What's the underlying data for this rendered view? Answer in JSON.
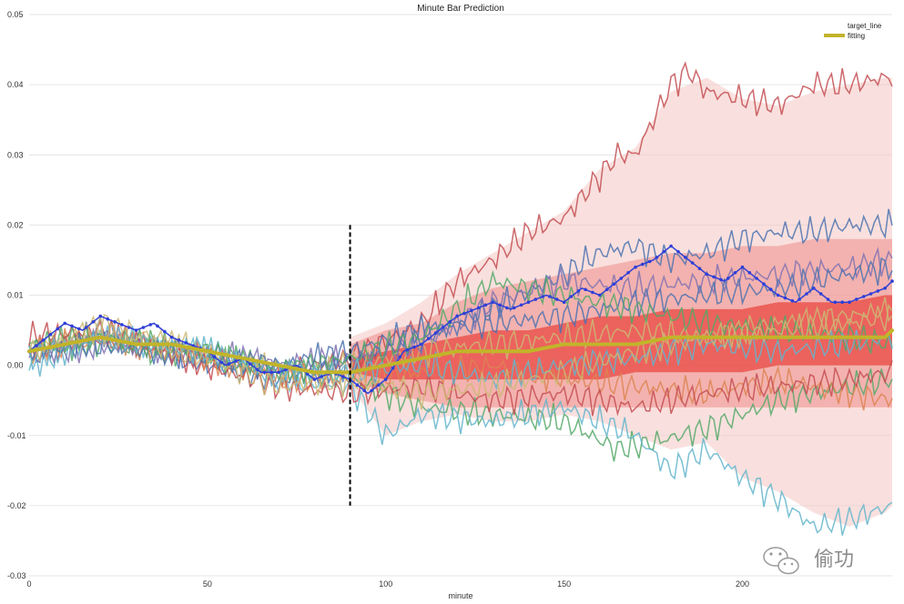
{
  "chart_data": {
    "type": "line",
    "title": "Minute Bar Prediction",
    "xlabel": "minute",
    "ylabel": "",
    "xlim": [
      0,
      242
    ],
    "ylim": [
      -0.03,
      0.05
    ],
    "x_ticks": [
      0,
      50,
      100,
      150,
      200
    ],
    "y_ticks": [
      -0.03,
      -0.02,
      -0.01,
      0.0,
      0.01,
      0.02,
      0.03,
      0.04,
      0.05
    ],
    "y_tick_labels": [
      "-0.03",
      "-0.02",
      "-0.01",
      "0.00",
      "0.01",
      "0.02",
      "0.03",
      "0.04",
      "0.05"
    ],
    "split_minute": 90,
    "split_ylim": [
      -0.02,
      0.02
    ],
    "legend": {
      "position": "top-right",
      "entries": [
        {
          "label": "target_line",
          "color": "#2f3fd8"
        },
        {
          "label": "fitting",
          "color": "#c2b42a"
        }
      ]
    },
    "bands": [
      {
        "name": "outer-band",
        "color": "#f4c6c3",
        "opacity": 0.55,
        "x": [
          90,
          100,
          110,
          120,
          130,
          140,
          150,
          160,
          170,
          180,
          190,
          200,
          210,
          220,
          230,
          240,
          242
        ],
        "upper": [
          0.004,
          0.006,
          0.009,
          0.013,
          0.016,
          0.019,
          0.022,
          0.028,
          0.031,
          0.039,
          0.041,
          0.038,
          0.037,
          0.039,
          0.04,
          0.041,
          0.041
        ],
        "lower": [
          -0.003,
          -0.01,
          -0.008,
          -0.007,
          -0.008,
          -0.008,
          -0.007,
          -0.008,
          -0.01,
          -0.012,
          -0.011,
          -0.016,
          -0.018,
          -0.021,
          -0.023,
          -0.021,
          -0.02
        ]
      },
      {
        "name": "mid-band",
        "color": "#ee8c88",
        "opacity": 0.55,
        "x": [
          90,
          100,
          110,
          120,
          130,
          140,
          150,
          160,
          170,
          180,
          190,
          200,
          210,
          220,
          230,
          240,
          242
        ],
        "upper": [
          0.003,
          0.005,
          0.006,
          0.009,
          0.011,
          0.012,
          0.013,
          0.014,
          0.015,
          0.016,
          0.016,
          0.017,
          0.017,
          0.018,
          0.018,
          0.018,
          0.018
        ],
        "lower": [
          -0.002,
          -0.004,
          -0.005,
          -0.006,
          -0.006,
          -0.006,
          -0.006,
          -0.006,
          -0.006,
          -0.006,
          -0.006,
          -0.006,
          -0.006,
          -0.006,
          -0.006,
          -0.006,
          -0.006
        ]
      },
      {
        "name": "inner-band",
        "color": "#e8403a",
        "opacity": 0.7,
        "x": [
          90,
          100,
          110,
          120,
          130,
          140,
          150,
          160,
          170,
          180,
          190,
          200,
          210,
          220,
          230,
          240,
          242
        ],
        "upper": [
          0.001,
          0.002,
          0.003,
          0.004,
          0.005,
          0.005,
          0.006,
          0.007,
          0.007,
          0.008,
          0.008,
          0.008,
          0.009,
          0.009,
          0.009,
          0.01,
          0.01
        ],
        "lower": [
          -0.001,
          -0.002,
          -0.002,
          -0.002,
          -0.002,
          -0.002,
          -0.002,
          -0.002,
          -0.001,
          -0.001,
          -0.001,
          -0.001,
          0.0,
          0.0,
          0.0,
          0.0,
          0.0
        ]
      }
    ],
    "series": [
      {
        "name": "sample-1",
        "color": "#c44e52",
        "x": [
          0,
          20,
          50,
          70,
          90,
          110,
          120,
          130,
          140,
          150,
          160,
          165,
          170,
          175,
          180,
          185,
          190,
          200,
          210,
          220,
          230,
          240,
          242
        ],
        "values": [
          0.002,
          0.004,
          0.001,
          -0.001,
          0.001,
          0.006,
          0.012,
          0.015,
          0.019,
          0.021,
          0.027,
          0.03,
          0.03,
          0.035,
          0.04,
          0.042,
          0.039,
          0.038,
          0.037,
          0.04,
          0.04,
          0.041,
          0.041
        ]
      },
      {
        "name": "sample-2",
        "color": "#4c72b0",
        "x": [
          0,
          20,
          50,
          70,
          90,
          110,
          130,
          150,
          160,
          170,
          180,
          190,
          200,
          210,
          220,
          230,
          242
        ],
        "values": [
          0.001,
          0.005,
          0.0,
          -0.002,
          0.0,
          0.004,
          0.008,
          0.013,
          0.016,
          0.017,
          0.015,
          0.016,
          0.018,
          0.019,
          0.019,
          0.02,
          0.02
        ]
      },
      {
        "name": "sample-3",
        "color": "#55a868",
        "x": [
          0,
          20,
          50,
          70,
          90,
          110,
          130,
          150,
          165,
          175,
          190,
          210,
          230,
          242
        ],
        "values": [
          0.003,
          0.003,
          0.001,
          0.0,
          -0.002,
          -0.006,
          -0.007,
          -0.008,
          -0.012,
          -0.011,
          -0.009,
          -0.005,
          -0.003,
          -0.002
        ]
      },
      {
        "name": "sample-4",
        "color": "#64b5cd",
        "x": [
          0,
          20,
          50,
          70,
          90,
          100,
          110,
          130,
          150,
          170,
          180,
          190,
          200,
          210,
          220,
          230,
          242
        ],
        "values": [
          0.0,
          0.004,
          0.002,
          -0.002,
          -0.003,
          -0.01,
          -0.007,
          -0.008,
          -0.006,
          -0.01,
          -0.015,
          -0.012,
          -0.016,
          -0.019,
          -0.023,
          -0.022,
          -0.02
        ]
      },
      {
        "name": "sample-5",
        "color": "#ccb974",
        "x": [
          0,
          20,
          50,
          70,
          90,
          110,
          130,
          150,
          170,
          190,
          210,
          230,
          242
        ],
        "values": [
          0.002,
          0.006,
          0.002,
          -0.001,
          0.0,
          0.002,
          0.003,
          0.004,
          0.005,
          0.004,
          0.006,
          0.007,
          0.008
        ]
      },
      {
        "name": "sample-6",
        "color": "#8172b2",
        "x": [
          0,
          20,
          50,
          70,
          90,
          110,
          130,
          150,
          170,
          190,
          210,
          230,
          242
        ],
        "values": [
          0.001,
          0.003,
          0.002,
          0.0,
          0.001,
          0.003,
          0.009,
          0.012,
          0.011,
          0.012,
          0.013,
          0.014,
          0.015
        ]
      },
      {
        "name": "sample-7",
        "color": "#dd8452",
        "x": [
          0,
          20,
          50,
          70,
          90,
          110,
          130,
          150,
          170,
          190,
          210,
          230,
          242
        ],
        "values": [
          0.002,
          0.004,
          0.001,
          -0.002,
          -0.002,
          -0.001,
          0.0,
          -0.002,
          -0.003,
          -0.004,
          -0.002,
          -0.004,
          -0.005
        ]
      },
      {
        "name": "sample-8",
        "color": "#c44e52",
        "x": [
          0,
          20,
          50,
          70,
          90,
          110,
          130,
          150,
          170,
          190,
          210,
          230,
          242
        ],
        "values": [
          0.004,
          0.005,
          0.0,
          -0.003,
          -0.004,
          -0.003,
          -0.005,
          -0.004,
          -0.006,
          -0.004,
          -0.003,
          -0.002,
          -0.001
        ]
      },
      {
        "name": "sample-9",
        "color": "#4c72b0",
        "x": [
          0,
          20,
          50,
          70,
          90,
          110,
          130,
          150,
          170,
          190,
          210,
          230,
          242
        ],
        "values": [
          0.002,
          0.003,
          0.001,
          0.0,
          0.002,
          0.005,
          0.006,
          0.007,
          0.009,
          0.01,
          0.011,
          0.013,
          0.014
        ]
      },
      {
        "name": "sample-10",
        "color": "#55a868",
        "x": [
          0,
          20,
          50,
          70,
          90,
          110,
          130,
          150,
          170,
          190,
          210,
          230,
          242
        ],
        "values": [
          0.003,
          0.004,
          0.002,
          -0.001,
          0.001,
          0.004,
          0.012,
          0.01,
          0.008,
          0.006,
          0.005,
          0.004,
          0.003
        ]
      },
      {
        "name": "sample-11",
        "color": "#64b5cd",
        "x": [
          0,
          20,
          50,
          70,
          90,
          110,
          130,
          150,
          170,
          190,
          210,
          230,
          242
        ],
        "values": [
          0.001,
          0.004,
          0.002,
          -0.001,
          -0.001,
          0.0,
          -0.002,
          0.0,
          0.001,
          0.003,
          0.002,
          0.003,
          0.004
        ]
      },
      {
        "name": "sample-12",
        "color": "#ccb974",
        "x": [
          0,
          20,
          50,
          70,
          90,
          110,
          130,
          150,
          170,
          190,
          210,
          230,
          242
        ],
        "values": [
          0.002,
          0.005,
          0.001,
          -0.003,
          -0.002,
          -0.004,
          -0.003,
          -0.001,
          0.002,
          0.004,
          0.005,
          0.006,
          0.007
        ]
      }
    ],
    "target_line": {
      "name": "target_line",
      "color": "#2f3fd8",
      "x": [
        0,
        5,
        10,
        15,
        20,
        25,
        30,
        35,
        40,
        45,
        50,
        55,
        60,
        65,
        70,
        75,
        80,
        85,
        90,
        95,
        100,
        105,
        110,
        115,
        120,
        125,
        130,
        135,
        140,
        145,
        150,
        155,
        160,
        165,
        170,
        175,
        180,
        185,
        190,
        195,
        200,
        205,
        210,
        215,
        220,
        225,
        230,
        235,
        240,
        242
      ],
      "values": [
        0.002,
        0.004,
        0.006,
        0.005,
        0.007,
        0.006,
        0.005,
        0.006,
        0.004,
        0.003,
        0.002,
        0.0,
        0.001,
        -0.001,
        -0.001,
        0.0,
        -0.002,
        -0.001,
        -0.002,
        -0.004,
        -0.002,
        0.002,
        0.003,
        0.005,
        0.007,
        0.008,
        0.009,
        0.008,
        0.009,
        0.01,
        0.009,
        0.011,
        0.01,
        0.012,
        0.014,
        0.015,
        0.017,
        0.015,
        0.013,
        0.012,
        0.014,
        0.012,
        0.01,
        0.009,
        0.011,
        0.009,
        0.009,
        0.01,
        0.011,
        0.012
      ]
    },
    "fitting": {
      "name": "fitting",
      "color": "#c2b42a",
      "x": [
        0,
        10,
        20,
        30,
        40,
        50,
        60,
        70,
        80,
        90,
        100,
        110,
        120,
        130,
        140,
        150,
        160,
        170,
        180,
        190,
        200,
        210,
        220,
        230,
        240,
        242
      ],
      "values": [
        0.002,
        0.003,
        0.004,
        0.003,
        0.003,
        0.002,
        0.001,
        0.0,
        -0.001,
        -0.001,
        0.0,
        0.001,
        0.002,
        0.002,
        0.002,
        0.003,
        0.003,
        0.003,
        0.004,
        0.004,
        0.004,
        0.004,
        0.004,
        0.004,
        0.004,
        0.005
      ]
    }
  },
  "watermark": {
    "text": "偷功",
    "icon": "wechat-icon"
  }
}
